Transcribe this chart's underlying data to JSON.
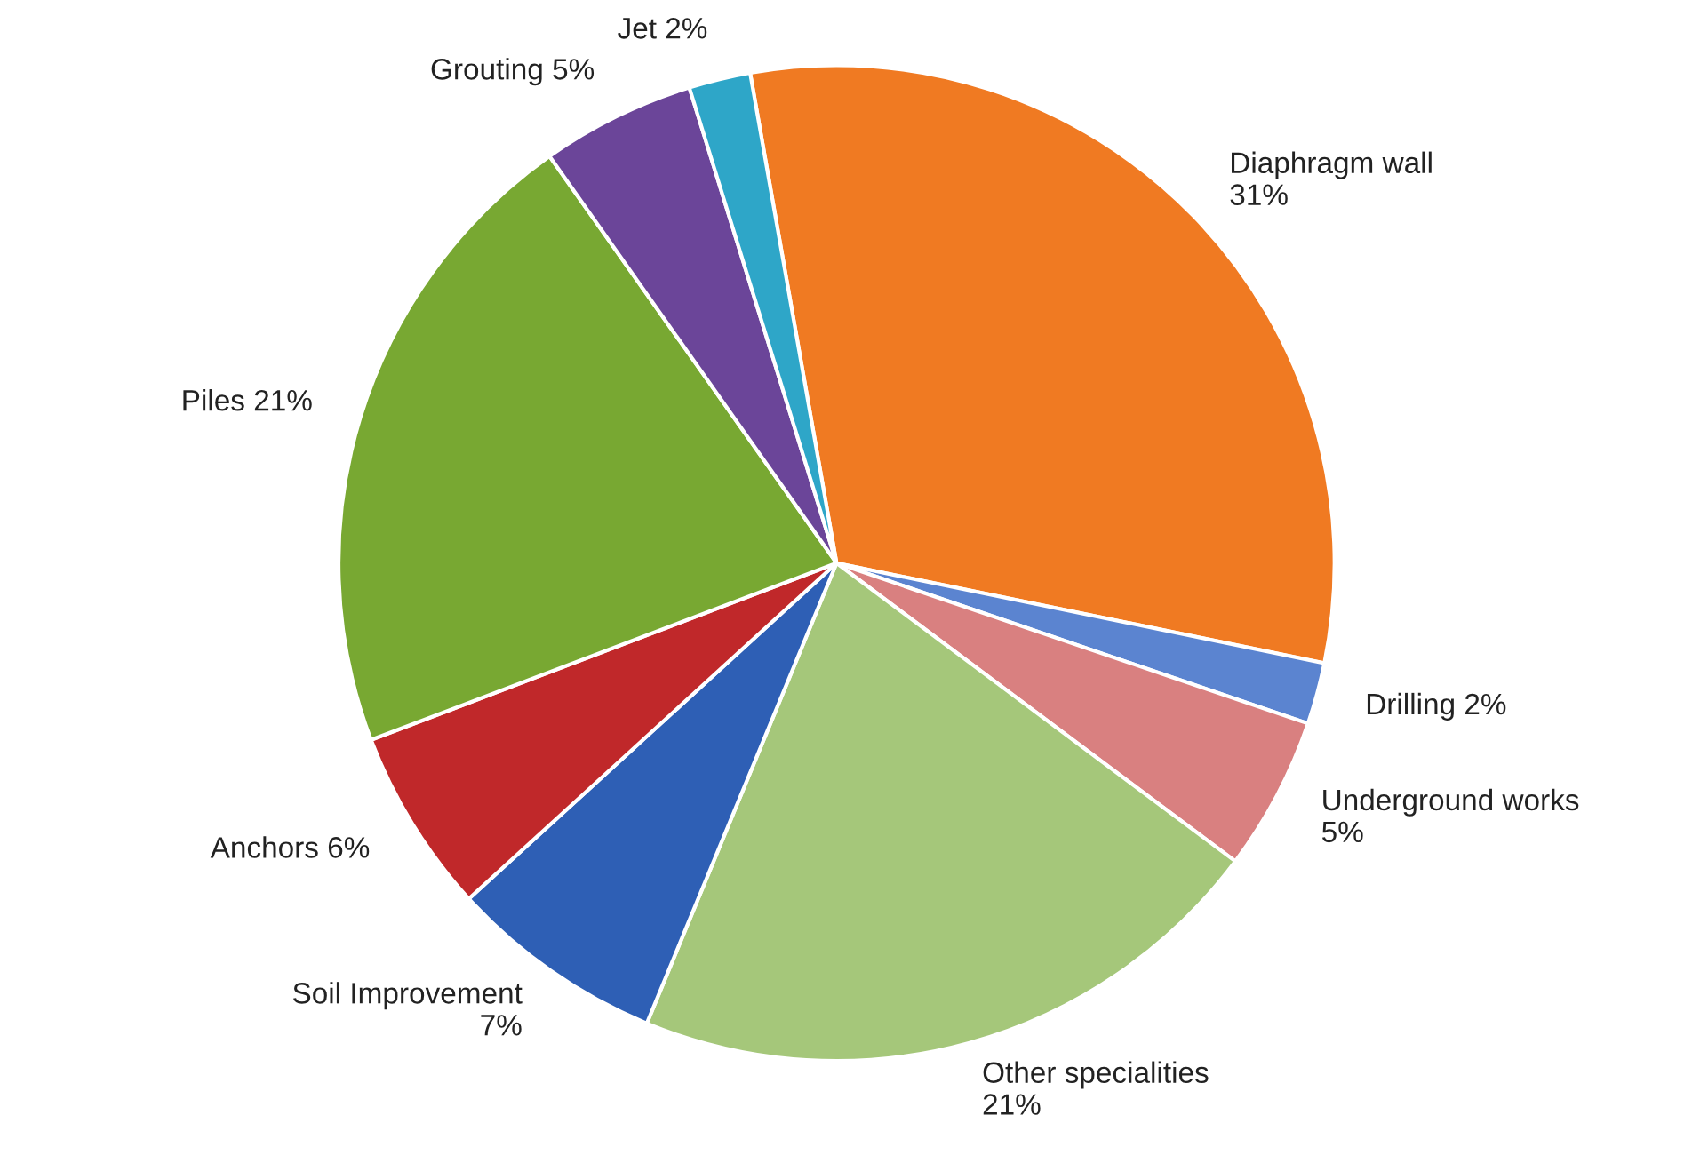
{
  "chart_data": {
    "type": "pie",
    "categories": [
      "Diaphragm wall",
      "Drilling",
      "Underground works",
      "Other specialities",
      "Soil Improvement",
      "Anchors",
      "Piles",
      "Grouting",
      "Jet"
    ],
    "values": [
      31,
      2,
      5,
      21,
      7,
      6,
      21,
      5,
      2
    ],
    "value_labels": [
      "31%",
      "2%",
      "5%",
      "21%",
      "7%",
      "6%",
      "21%",
      "5%",
      "2%"
    ],
    "colors": [
      "#f07a22",
      "#5b84d0",
      "#d98080",
      "#a5c77a",
      "#2e5fb5",
      "#c0282a",
      "#78a832",
      "#6b4599",
      "#2ea6c8"
    ]
  }
}
